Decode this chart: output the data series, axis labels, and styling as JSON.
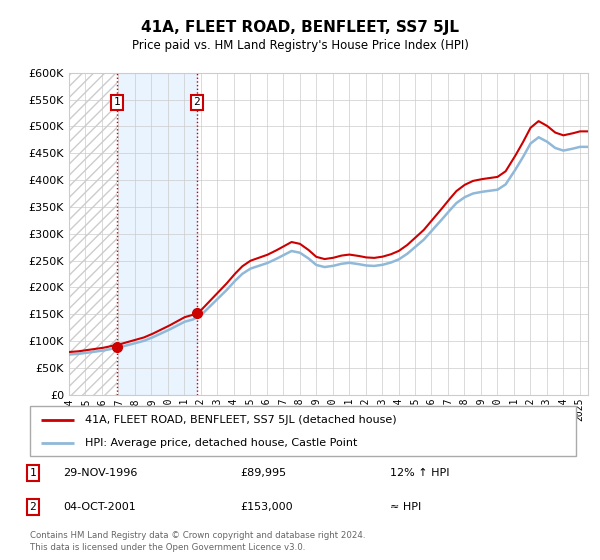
{
  "title": "41A, FLEET ROAD, BENFLEET, SS7 5JL",
  "subtitle": "Price paid vs. HM Land Registry's House Price Index (HPI)",
  "background_color": "#ffffff",
  "plot_bg_color": "#ffffff",
  "grid_color": "#cccccc",
  "hpi_line_color": "#90b8d8",
  "price_line_color": "#cc0000",
  "marker_color": "#cc0000",
  "sale1_year": 1996.91,
  "sale1_price": 89995,
  "sale2_year": 2001.75,
  "sale2_price": 153000,
  "vline_color": "#cc0000",
  "shade_color": "#ddeeff",
  "legend_label1": "41A, FLEET ROAD, BENFLEET, SS7 5JL (detached house)",
  "legend_label2": "HPI: Average price, detached house, Castle Point",
  "table_row1_num": "1",
  "table_row1_date": "29-NOV-1996",
  "table_row1_price": "£89,995",
  "table_row1_hpi": "12% ↑ HPI",
  "table_row2_num": "2",
  "table_row2_date": "04-OCT-2001",
  "table_row2_price": "£153,000",
  "table_row2_hpi": "≈ HPI",
  "footer_text1": "Contains HM Land Registry data © Crown copyright and database right 2024.",
  "footer_text2": "This data is licensed under the Open Government Licence v3.0.",
  "ylim_min": 0,
  "ylim_max": 600000,
  "xmin": 1994.0,
  "xmax": 2025.5,
  "hpi_years": [
    1994,
    1994.5,
    1995,
    1995.5,
    1996,
    1996.5,
    1997,
    1997.5,
    1998,
    1998.5,
    1999,
    1999.5,
    2000,
    2000.5,
    2001,
    2001.5,
    2002,
    2002.5,
    2003,
    2003.5,
    2004,
    2004.5,
    2005,
    2005.5,
    2006,
    2006.5,
    2007,
    2007.5,
    2008,
    2008.5,
    2009,
    2009.5,
    2010,
    2010.5,
    2011,
    2011.5,
    2012,
    2012.5,
    2013,
    2013.5,
    2014,
    2014.5,
    2015,
    2015.5,
    2016,
    2016.5,
    2017,
    2017.5,
    2018,
    2018.5,
    2019,
    2019.5,
    2020,
    2020.5,
    2021,
    2021.5,
    2022,
    2022.5,
    2023,
    2023.5,
    2024,
    2024.5,
    2025
  ],
  "hpi_vals": [
    75000,
    76000,
    78000,
    80000,
    82000,
    85000,
    88000,
    92000,
    96000,
    100000,
    106000,
    113000,
    120000,
    128000,
    136000,
    140000,
    148000,
    163000,
    178000,
    193000,
    210000,
    225000,
    235000,
    240000,
    245000,
    252000,
    260000,
    268000,
    265000,
    255000,
    242000,
    238000,
    240000,
    244000,
    246000,
    244000,
    241000,
    240000,
    242000,
    246000,
    252000,
    262000,
    275000,
    288000,
    305000,
    322000,
    340000,
    357000,
    368000,
    375000,
    378000,
    380000,
    382000,
    392000,
    415000,
    440000,
    468000,
    480000,
    472000,
    460000,
    455000,
    458000,
    462000
  ]
}
